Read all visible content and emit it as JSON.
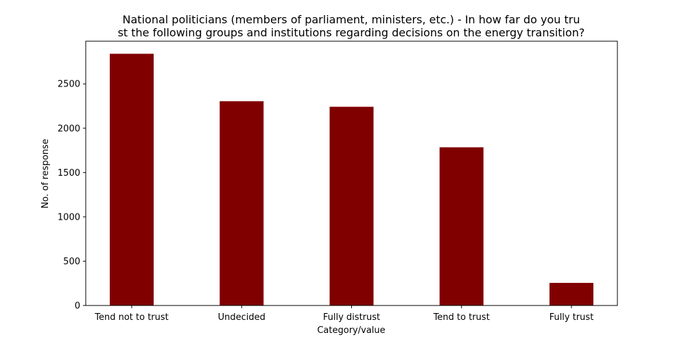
{
  "chart_data": {
    "type": "bar",
    "title_lines": [
      "National politicians (members of parliament, ministers, etc.) - In how far do you tru",
      "st the following groups and institutions regarding decisions on the energy transition?"
    ],
    "xlabel": "Category/value",
    "ylabel": "No. of response",
    "categories": [
      "Tend not to trust",
      "Undecided",
      "Fully distrust",
      "Tend to trust",
      "Fully trust"
    ],
    "values": [
      2840,
      2305,
      2242,
      1785,
      255
    ],
    "ylim": [
      0,
      2982
    ],
    "yticks": [
      0,
      500,
      1000,
      1500,
      2000,
      2500
    ],
    "bar_color": "#800000",
    "grid": false,
    "legend": "none"
  }
}
